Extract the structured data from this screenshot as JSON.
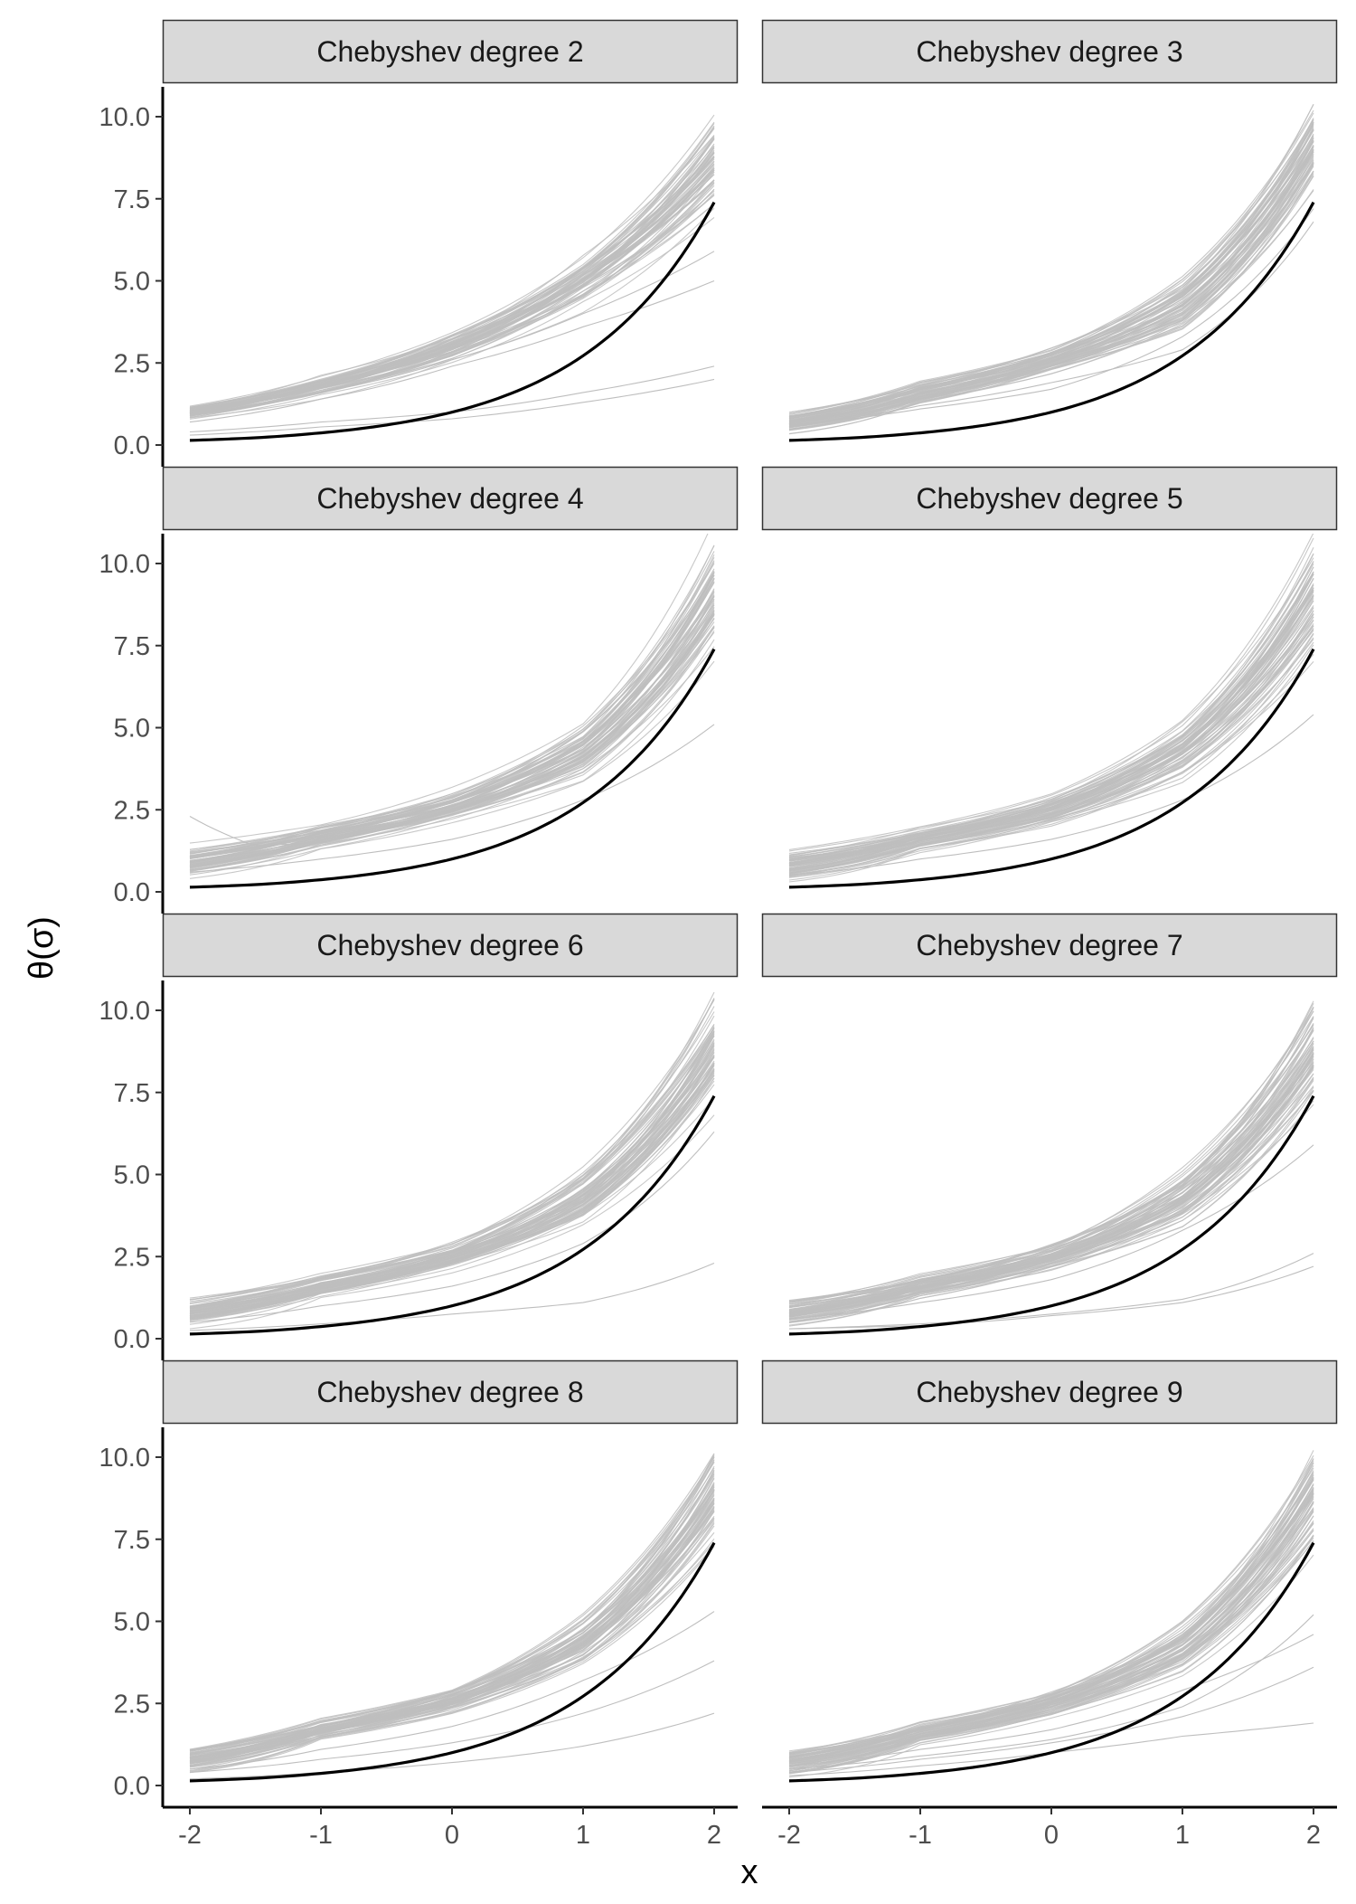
{
  "chart_data": {
    "type": "line",
    "layout": "facet-grid",
    "xlabel": "x",
    "ylabel": "θ(σ)",
    "xlim": [
      -2,
      2
    ],
    "ylim": [
      0,
      10
    ],
    "x_ticks": [
      "-2",
      "-1",
      "0",
      "1",
      "2"
    ],
    "y_ticks": [
      "0.0",
      "2.5",
      "5.0",
      "7.5",
      "10.0"
    ],
    "grid": false,
    "legend": "none",
    "colors": {
      "true_curve": "#000000",
      "sample_curves": "#bebebe",
      "strip_fill": "#d9d9d9",
      "strip_border": "#333333",
      "axis": "#000000"
    },
    "true_curve": {
      "name": "",
      "description_function": "exp(x)",
      "x": [
        -2,
        -1.5,
        -1,
        -0.5,
        0,
        0.5,
        1,
        1.5,
        2
      ],
      "y": [
        0.14,
        0.22,
        0.37,
        0.61,
        1.0,
        1.65,
        2.72,
        4.48,
        7.39
      ]
    },
    "panels": [
      {
        "title": "Chebyshev degree 2",
        "sample_band": {
          "x": [
            -2,
            -1,
            0,
            1,
            2
          ],
          "center": [
            1.0,
            1.8,
            3.0,
            5.0,
            8.6
          ],
          "spread": [
            0.15,
            0.25,
            0.35,
            0.6,
            1.2
          ]
        },
        "outliers": [
          {
            "x": [
              -2,
              -1,
              0,
              1,
              2
            ],
            "y": [
              0.4,
              0.7,
              1.0,
              1.6,
              2.4
            ]
          },
          {
            "x": [
              -2,
              -1,
              0,
              1,
              2
            ],
            "y": [
              0.3,
              0.55,
              0.8,
              1.3,
              2.0
            ]
          },
          {
            "x": [
              -2,
              -1,
              0,
              1,
              2
            ],
            "y": [
              0.7,
              1.4,
              2.4,
              3.6,
              5.0
            ]
          },
          {
            "x": [
              -2,
              -1,
              0,
              1,
              2
            ],
            "y": [
              0.9,
              1.6,
              2.6,
              4.0,
              5.9
            ]
          }
        ]
      },
      {
        "title": "Chebyshev degree 3",
        "sample_band": {
          "x": [
            -2,
            -1,
            0,
            1,
            2
          ],
          "center": [
            0.7,
            1.6,
            2.6,
            4.3,
            9.2
          ],
          "spread": [
            0.25,
            0.25,
            0.3,
            0.6,
            1.0
          ]
        },
        "outliers": [
          {
            "x": [
              -2,
              -1,
              0,
              1,
              2
            ],
            "y": [
              0.6,
              1.2,
              1.9,
              2.9,
              6.8
            ]
          },
          {
            "x": [
              -2,
              -1,
              0,
              1,
              2
            ],
            "y": [
              0.6,
              1.1,
              1.7,
              3.3,
              7.2
            ]
          }
        ]
      },
      {
        "title": "Chebyshev degree 4",
        "sample_band": {
          "x": [
            -2,
            -1,
            0,
            1,
            2
          ],
          "center": [
            0.9,
            1.7,
            2.6,
            4.3,
            9.0
          ],
          "spread": [
            0.3,
            0.25,
            0.3,
            0.6,
            1.2
          ]
        },
        "outliers": [
          {
            "x": [
              -2,
              -1.5,
              -1,
              0,
              1,
              2
            ],
            "y": [
              2.3,
              1.4,
              1.5,
              2.5,
              4.1,
              8.5
            ]
          },
          {
            "x": [
              -2,
              -1,
              0,
              1,
              2
            ],
            "y": [
              0.6,
              1.0,
              1.6,
              2.8,
              5.1
            ]
          }
        ]
      },
      {
        "title": "Chebyshev degree 5",
        "sample_band": {
          "x": [
            -2,
            -1,
            0,
            1,
            2
          ],
          "center": [
            0.8,
            1.6,
            2.5,
            4.3,
            9.0
          ],
          "spread": [
            0.3,
            0.25,
            0.3,
            0.6,
            1.2
          ]
        },
        "outliers": [
          {
            "x": [
              -2,
              -1,
              0,
              1,
              2
            ],
            "y": [
              0.5,
              1.0,
              1.6,
              2.8,
              5.4
            ]
          }
        ]
      },
      {
        "title": "Chebyshev degree 6",
        "sample_band": {
          "x": [
            -2,
            -1,
            0,
            1,
            2
          ],
          "center": [
            0.8,
            1.6,
            2.5,
            4.3,
            8.8
          ],
          "spread": [
            0.3,
            0.25,
            0.3,
            0.6,
            1.2
          ]
        },
        "outliers": [
          {
            "x": [
              -2,
              -1,
              0,
              1,
              2
            ],
            "y": [
              0.25,
              0.45,
              0.75,
              1.1,
              2.3
            ]
          },
          {
            "x": [
              -2,
              -1,
              0,
              1,
              2
            ],
            "y": [
              0.5,
              1.0,
              1.6,
              2.9,
              6.3
            ]
          }
        ]
      },
      {
        "title": "Chebyshev degree 7",
        "sample_band": {
          "x": [
            -2,
            -1,
            0,
            1,
            2
          ],
          "center": [
            0.8,
            1.6,
            2.5,
            4.3,
            8.8
          ],
          "spread": [
            0.3,
            0.25,
            0.3,
            0.6,
            1.2
          ]
        },
        "outliers": [
          {
            "x": [
              -2,
              -1,
              0,
              1,
              2
            ],
            "y": [
              0.3,
              0.45,
              0.75,
              1.2,
              2.6
            ]
          },
          {
            "x": [
              -2,
              -1,
              0,
              1,
              2
            ],
            "y": [
              0.3,
              0.4,
              0.7,
              1.1,
              2.2
            ]
          },
          {
            "x": [
              -2,
              -1,
              0,
              1,
              2
            ],
            "y": [
              0.6,
              1.1,
              1.8,
              3.3,
              5.9
            ]
          }
        ]
      },
      {
        "title": "Chebyshev degree 8",
        "sample_band": {
          "x": [
            -2,
            -1,
            0,
            1,
            2
          ],
          "center": [
            0.8,
            1.7,
            2.6,
            4.4,
            8.9
          ],
          "spread": [
            0.3,
            0.25,
            0.3,
            0.6,
            1.2
          ]
        },
        "outliers": [
          {
            "x": [
              -2,
              -1,
              0,
              1,
              2
            ],
            "y": [
              0.2,
              0.4,
              0.7,
              1.2,
              2.2
            ]
          },
          {
            "x": [
              -2,
              -1,
              0,
              1,
              2
            ],
            "y": [
              0.4,
              0.8,
              1.3,
              2.2,
              3.8
            ]
          },
          {
            "x": [
              -2,
              -1,
              0,
              1,
              2
            ],
            "y": [
              0.5,
              1.1,
              1.8,
              3.2,
              5.3
            ]
          }
        ]
      },
      {
        "title": "Chebyshev degree 9",
        "sample_band": {
          "x": [
            -2,
            -1,
            0,
            1,
            2
          ],
          "center": [
            0.7,
            1.6,
            2.5,
            4.2,
            8.8
          ],
          "spread": [
            0.3,
            0.25,
            0.3,
            0.6,
            1.2
          ]
        },
        "outliers": [
          {
            "x": [
              -2,
              -1,
              0,
              1,
              2
            ],
            "y": [
              0.3,
              0.6,
              1.0,
              1.5,
              1.9
            ]
          },
          {
            "x": [
              -2,
              -1,
              0,
              1,
              2
            ],
            "y": [
              0.4,
              0.8,
              1.3,
              2.1,
              3.6
            ]
          },
          {
            "x": [
              -2,
              -1,
              0,
              1,
              2
            ],
            "y": [
              0.5,
              0.9,
              1.4,
              2.4,
              5.2
            ]
          },
          {
            "x": [
              -2,
              -1,
              0,
              1,
              2
            ],
            "y": [
              0.6,
              1.1,
              1.7,
              2.9,
              4.6
            ]
          }
        ]
      }
    ]
  }
}
